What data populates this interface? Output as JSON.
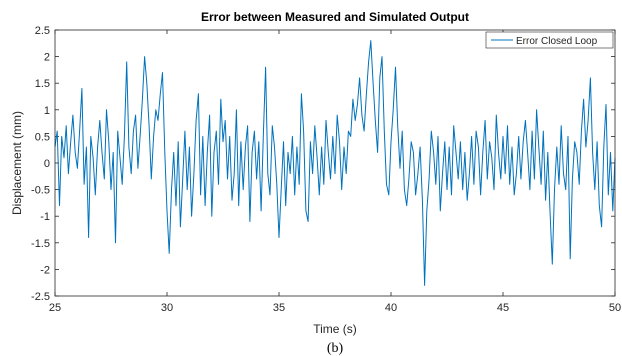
{
  "chart_data": {
    "type": "line",
    "title": "Error between Measured and Simulated Output",
    "xlabel": "Time (s)",
    "ylabel": "Displacement (mm)",
    "xlim": [
      25,
      50
    ],
    "ylim": [
      -2.5,
      2.5
    ],
    "x_ticks": [
      25,
      30,
      35,
      40,
      45,
      50
    ],
    "x_tick_labels": [
      "25",
      "30",
      "35",
      "40",
      "45",
      "50"
    ],
    "y_ticks": [
      -2.5,
      -2,
      -1.5,
      -1,
      -0.5,
      0,
      0.5,
      1,
      1.5,
      2,
      2.5
    ],
    "y_tick_labels": [
      "-2.5",
      "-2",
      "-1.5",
      "-1",
      "-0.5",
      "0",
      "0.5",
      "1",
      "1.5",
      "2",
      "2.5"
    ],
    "grid": false,
    "legend_position": "top-right",
    "series": [
      {
        "name": "Error Closed Loop",
        "color": "#0072BD",
        "x": [
          25.0,
          25.1,
          25.2,
          25.3,
          25.4,
          25.5,
          25.6,
          25.7,
          25.8,
          25.9,
          26.0,
          26.1,
          26.2,
          26.3,
          26.4,
          26.5,
          26.6,
          26.7,
          26.8,
          26.9,
          27.0,
          27.1,
          27.2,
          27.3,
          27.4,
          27.5,
          27.6,
          27.7,
          27.8,
          27.9,
          28.0,
          28.1,
          28.2,
          28.3,
          28.4,
          28.5,
          28.6,
          28.7,
          28.8,
          28.9,
          29.0,
          29.1,
          29.2,
          29.3,
          29.4,
          29.5,
          29.6,
          29.7,
          29.8,
          29.9,
          30.0,
          30.1,
          30.2,
          30.3,
          30.4,
          30.5,
          30.6,
          30.7,
          30.8,
          30.9,
          31.0,
          31.1,
          31.2,
          31.3,
          31.4,
          31.5,
          31.6,
          31.7,
          31.8,
          31.9,
          32.0,
          32.1,
          32.2,
          32.3,
          32.4,
          32.5,
          32.6,
          32.7,
          32.8,
          32.9,
          33.0,
          33.1,
          33.2,
          33.3,
          33.4,
          33.5,
          33.6,
          33.7,
          33.8,
          33.9,
          34.0,
          34.1,
          34.2,
          34.3,
          34.4,
          34.5,
          34.6,
          34.7,
          34.8,
          34.9,
          35.0,
          35.1,
          35.2,
          35.3,
          35.4,
          35.5,
          35.6,
          35.7,
          35.8,
          35.9,
          36.0,
          36.1,
          36.2,
          36.3,
          36.4,
          36.5,
          36.6,
          36.7,
          36.8,
          36.9,
          37.0,
          37.1,
          37.2,
          37.3,
          37.4,
          37.5,
          37.6,
          37.7,
          37.8,
          37.9,
          38.0,
          38.1,
          38.2,
          38.3,
          38.4,
          38.5,
          38.6,
          38.7,
          38.8,
          38.9,
          39.0,
          39.1,
          39.2,
          39.3,
          39.4,
          39.5,
          39.6,
          39.7,
          39.8,
          39.9,
          40.0,
          40.1,
          40.2,
          40.3,
          40.4,
          40.5,
          40.6,
          40.7,
          40.8,
          40.9,
          41.0,
          41.1,
          41.2,
          41.3,
          41.4,
          41.5,
          41.6,
          41.7,
          41.8,
          41.9,
          42.0,
          42.1,
          42.2,
          42.3,
          42.4,
          42.5,
          42.6,
          42.7,
          42.8,
          42.9,
          43.0,
          43.1,
          43.2,
          43.3,
          43.4,
          43.5,
          43.6,
          43.7,
          43.8,
          43.9,
          44.0,
          44.1,
          44.2,
          44.3,
          44.4,
          44.5,
          44.6,
          44.7,
          44.8,
          44.9,
          45.0,
          45.1,
          45.2,
          45.3,
          45.4,
          45.5,
          45.6,
          45.7,
          45.8,
          45.9,
          46.0,
          46.1,
          46.2,
          46.3,
          46.4,
          46.5,
          46.6,
          46.7,
          46.8,
          46.9,
          47.0,
          47.1,
          47.2,
          47.3,
          47.4,
          47.5,
          47.6,
          47.7,
          47.8,
          47.9,
          48.0,
          48.1,
          48.2,
          48.3,
          48.4,
          48.5,
          48.6,
          48.7,
          48.8,
          48.9,
          49.0,
          49.1,
          49.2,
          49.3,
          49.4,
          49.5,
          49.6,
          49.7,
          49.8,
          49.9,
          50.0
        ],
        "y": [
          0.3,
          0.6,
          -0.8,
          0.5,
          0.1,
          0.7,
          -0.2,
          0.4,
          0.9,
          0.2,
          -0.1,
          0.6,
          1.4,
          -0.4,
          0.3,
          -1.4,
          0.5,
          0.1,
          -0.6,
          0.3,
          0.8,
          0.2,
          -0.3,
          1.0,
          0.4,
          -0.5,
          0.2,
          -1.5,
          0.6,
          0.1,
          -0.4,
          0.5,
          1.9,
          0.3,
          -0.2,
          0.6,
          0.9,
          -0.1,
          0.5,
          1.2,
          2.0,
          1.5,
          0.7,
          -0.3,
          0.5,
          1.0,
          0.8,
          1.3,
          1.7,
          0.2,
          -0.9,
          -1.7,
          -0.5,
          0.2,
          -0.8,
          0.4,
          -1.2,
          -0.3,
          0.6,
          -0.5,
          0.3,
          -1.0,
          -0.2,
          0.8,
          1.3,
          -0.6,
          0.5,
          -0.8,
          0.2,
          0.9,
          -1.0,
          0.2,
          0.6,
          -0.4,
          1.2,
          0.4,
          0.8,
          -0.3,
          0.5,
          -0.7,
          -0.2,
          1.0,
          -0.8,
          0.4,
          -0.5,
          0.3,
          0.7,
          -1.1,
          0.2,
          0.6,
          -0.3,
          0.4,
          -0.9,
          0.5,
          1.8,
          -0.2,
          -0.6,
          0.7,
          0.3,
          -0.4,
          -1.4,
          -0.5,
          0.4,
          -0.8,
          0.2,
          -0.2,
          0.5,
          -0.6,
          0.3,
          -0.4,
          1.3,
          0.6,
          -0.9,
          -1.1,
          0.4,
          -0.2,
          0.7,
          0.1,
          -0.6,
          0.3,
          -0.4,
          0.8,
          0.2,
          -0.3,
          0.5,
          -0.2,
          0.9,
          0.4,
          -0.5,
          0.3,
          -0.2,
          0.6,
          0.5,
          1.2,
          0.8,
          1.1,
          1.6,
          0.9,
          0.6,
          1.3,
          1.9,
          2.3,
          1.5,
          0.8,
          0.2,
          1.6,
          2.0,
          0.6,
          -0.4,
          -0.6,
          0.4,
          1.0,
          1.8,
          0.7,
          -0.1,
          0.6,
          -0.5,
          -0.8,
          -0.3,
          0.4,
          0.2,
          -0.6,
          -0.2,
          0.3,
          -0.7,
          -2.3,
          -0.9,
          -0.3,
          0.6,
          0.2,
          -0.4,
          0.5,
          -0.9,
          -0.2,
          0.4,
          -0.5,
          0.3,
          -0.6,
          0.7,
          0.2,
          -0.3,
          0.4,
          -0.5,
          0.2,
          -0.7,
          -0.2,
          0.5,
          -0.4,
          0.6,
          0.3,
          -0.6,
          0.2,
          0.8,
          -0.3,
          0.4,
          0.1,
          -0.5,
          0.9,
          0.2,
          -0.3,
          0.5,
          -0.2,
          0.7,
          -0.4,
          0.3,
          -0.6,
          -0.2,
          0.5,
          -0.3,
          0.4,
          0.8,
          0.2,
          -0.5,
          0.6,
          -0.3,
          1.0,
          0.3,
          -0.4,
          0.6,
          -0.7,
          0.2,
          -0.9,
          -1.9,
          -0.5,
          0.3,
          -0.4,
          0.7,
          -0.2,
          -0.5,
          0.5,
          -1.8,
          -0.3,
          0.4,
          0.2,
          -0.4,
          0.6,
          1.2,
          0.3,
          0.8,
          1.6,
          0.2,
          -0.5,
          0.4,
          -0.8,
          -1.2,
          0.3,
          1.1,
          -0.6,
          0.2,
          -0.9,
          0.1
        ]
      }
    ]
  },
  "caption": "(b)"
}
